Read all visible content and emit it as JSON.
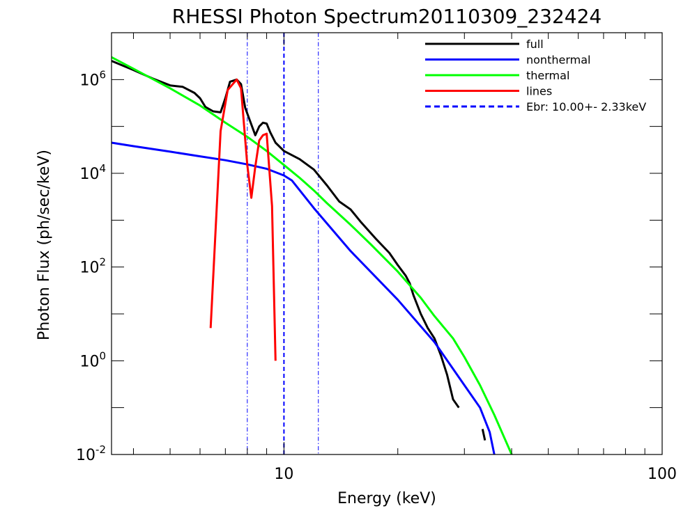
{
  "chart_data": {
    "type": "line",
    "title": "RHESSI Photon Spectrum20110309_232424",
    "xlabel": "Energy (keV)",
    "ylabel": "Photon Flux (ph/sec/keV)",
    "xscale": "log",
    "yscale": "log",
    "xlim": [
      3.5,
      100
    ],
    "ylim": [
      0.01,
      10000000
    ],
    "grid": false,
    "legend_position": "top-right",
    "x_tick_labels": [
      {
        "value": 10,
        "label": "10"
      },
      {
        "value": 100,
        "label": "100"
      }
    ],
    "y_tick_labels": [
      {
        "value": 0.01,
        "base": "10",
        "exp": "-2"
      },
      {
        "value": 1,
        "base": "10",
        "exp": "0"
      },
      {
        "value": 100,
        "base": "10",
        "exp": "2"
      },
      {
        "value": 10000,
        "base": "10",
        "exp": "4"
      },
      {
        "value": 1000000,
        "base": "10",
        "exp": "6"
      }
    ],
    "series": [
      {
        "name": "full",
        "color": "#000000",
        "segments": [
          [
            [
              3.5,
              2500000
            ],
            [
              4.0,
              1600000
            ],
            [
              4.5,
              1050000
            ],
            [
              5.0,
              750000
            ],
            [
              5.4,
              700000
            ],
            [
              5.8,
              520000
            ],
            [
              6.0,
              400000
            ],
            [
              6.2,
              260000
            ],
            [
              6.5,
              210000
            ],
            [
              6.8,
              200000
            ],
            [
              7.0,
              400000
            ],
            [
              7.2,
              900000
            ],
            [
              7.5,
              1000000
            ],
            [
              7.7,
              800000
            ],
            [
              7.9,
              250000
            ],
            [
              8.2,
              110000
            ],
            [
              8.4,
              65000
            ],
            [
              8.6,
              100000
            ],
            [
              8.8,
              120000
            ],
            [
              9.0,
              115000
            ],
            [
              9.2,
              75000
            ],
            [
              9.5,
              45000
            ],
            [
              10,
              30000
            ],
            [
              11,
              20000
            ],
            [
              12,
              12000
            ],
            [
              13,
              5500
            ],
            [
              14,
              2500
            ],
            [
              15,
              1700
            ],
            [
              16,
              900
            ],
            [
              17.5,
              400
            ],
            [
              19,
              200
            ],
            [
              20,
              110
            ],
            [
              21,
              65
            ],
            [
              21.5,
              45
            ],
            [
              22,
              25
            ],
            [
              23,
              10
            ],
            [
              24,
              5
            ],
            [
              25,
              3
            ],
            [
              26,
              1.3
            ],
            [
              27,
              0.5
            ],
            [
              28,
              0.15
            ],
            [
              29,
              0.1
            ]
          ],
          [
            [
              33.5,
              0.035
            ],
            [
              34,
              0.02
            ]
          ]
        ]
      },
      {
        "name": "nonthermal",
        "color": "#0000ff",
        "segments": [
          [
            [
              3.5,
              45000
            ],
            [
              4.0,
              38000
            ],
            [
              5.0,
              29000
            ],
            [
              6.0,
              23000
            ],
            [
              7.0,
              19000
            ],
            [
              8.0,
              15500
            ],
            [
              9.0,
              12500
            ],
            [
              10,
              9000
            ],
            [
              10.5,
              7000
            ],
            [
              12,
              1800
            ],
            [
              15,
              220
            ],
            [
              20,
              20
            ],
            [
              25,
              2.5
            ],
            [
              30,
              0.3
            ],
            [
              33,
              0.1
            ],
            [
              35,
              0.03
            ],
            [
              36,
              0.01
            ]
          ]
        ]
      },
      {
        "name": "thermal",
        "color": "#00ff00",
        "segments": [
          [
            [
              3.5,
              3000000
            ],
            [
              4,
              1700000
            ],
            [
              5,
              650000
            ],
            [
              6,
              280000
            ],
            [
              7,
              120000
            ],
            [
              8,
              60000
            ],
            [
              9,
              30000
            ],
            [
              10,
              15000
            ],
            [
              11,
              8000
            ],
            [
              12,
              4300
            ],
            [
              13,
              2300
            ],
            [
              15,
              800
            ],
            [
              17,
              300
            ],
            [
              20,
              80
            ],
            [
              23,
              22
            ],
            [
              25,
              9
            ],
            [
              28,
              3
            ],
            [
              30,
              1.2
            ],
            [
              33,
              0.3
            ],
            [
              36,
              0.07
            ],
            [
              40,
              0.01
            ]
          ]
        ]
      },
      {
        "name": "lines",
        "color": "#ff0000",
        "segments": [
          [
            [
              6.4,
              5
            ],
            [
              6.8,
              80000
            ],
            [
              7.1,
              600000
            ],
            [
              7.5,
              1000000
            ],
            [
              7.7,
              650000
            ],
            [
              8.0,
              15000
            ],
            [
              8.2,
              3000
            ],
            [
              8.4,
              14000
            ],
            [
              8.6,
              50000
            ],
            [
              8.8,
              65000
            ],
            [
              9.0,
              70000
            ],
            [
              9.3,
              2000
            ],
            [
              9.5,
              1
            ]
          ]
        ]
      }
    ],
    "vertical_lines": [
      {
        "x": 8.0,
        "style": "dash-dot",
        "color": "#0000ff"
      },
      {
        "x": 10.0,
        "style": "dashed",
        "color": "#0000ff"
      },
      {
        "x": 12.33,
        "style": "dash-dot",
        "color": "#0000ff"
      }
    ],
    "legend": [
      {
        "label": "full",
        "color": "#000000",
        "style": "solid"
      },
      {
        "label": "nonthermal",
        "color": "#0000ff",
        "style": "solid"
      },
      {
        "label": "thermal",
        "color": "#00ff00",
        "style": "solid"
      },
      {
        "label": "lines",
        "color": "#ff0000",
        "style": "solid"
      },
      {
        "label": "Ebr:  10.00+-  2.33keV",
        "color": "#0000ff",
        "style": "dashed"
      }
    ]
  }
}
